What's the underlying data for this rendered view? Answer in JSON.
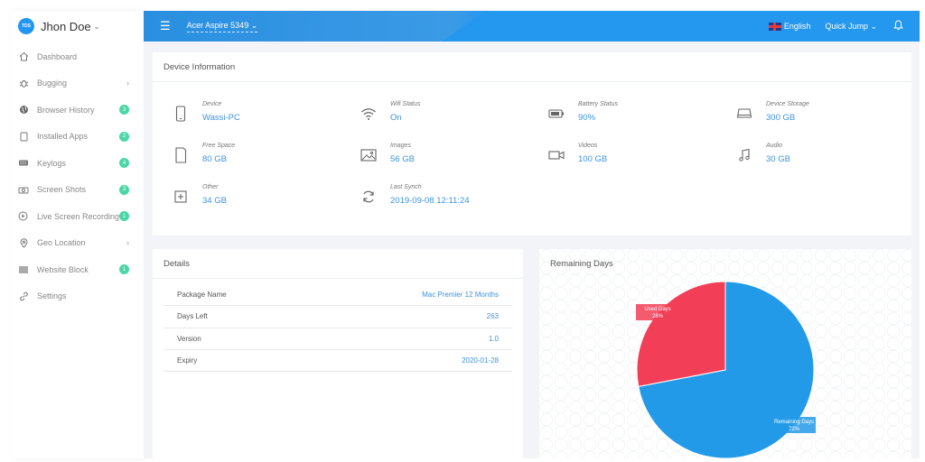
{
  "user": {
    "initials": "TDS",
    "name": "Jhon Doe"
  },
  "sidebar": {
    "items": [
      {
        "label": "Dashboard",
        "icon": "home-icon",
        "badge": null,
        "has_arrow": false
      },
      {
        "label": "Bugging",
        "icon": "bug-icon",
        "badge": null,
        "has_arrow": true
      },
      {
        "label": "Browser History",
        "icon": "globe-icon",
        "badge": "3",
        "has_arrow": false
      },
      {
        "label": "Installed Apps",
        "icon": "tablet-icon",
        "badge": "2",
        "has_arrow": false
      },
      {
        "label": "Keylogs",
        "icon": "keyboard-icon",
        "badge": "4",
        "has_arrow": false
      },
      {
        "label": "Screen Shots",
        "icon": "camera-icon",
        "badge": "3",
        "has_arrow": false
      },
      {
        "label": "Live Screen Recording",
        "icon": "play-circle-icon",
        "badge": "1",
        "has_arrow": false
      },
      {
        "label": "Geo Location",
        "icon": "map-pin-icon",
        "badge": null,
        "has_arrow": true
      },
      {
        "label": "Website Block",
        "icon": "list-icon",
        "badge": "1",
        "has_arrow": false
      },
      {
        "label": "Settings",
        "icon": "link-icon",
        "badge": null,
        "has_arrow": false
      }
    ]
  },
  "topbar": {
    "device": "Acer Aspire 5349",
    "language": "English",
    "quick_jump": "Quick Jump"
  },
  "device_info": {
    "title": "Device Information",
    "items": [
      {
        "label": "Device",
        "value": "Wassi-PC",
        "icon": "phone-icon"
      },
      {
        "label": "Wifi Status",
        "value": "On",
        "icon": "wifi-icon"
      },
      {
        "label": "Battery Status",
        "value": "90%",
        "icon": "battery-icon"
      },
      {
        "label": "Device Storage",
        "value": "300 GB",
        "icon": "storage-icon"
      },
      {
        "label": "Free Space",
        "value": "80 GB",
        "icon": "sdcard-icon"
      },
      {
        "label": "Images",
        "value": "56 GB",
        "icon": "image-icon"
      },
      {
        "label": "Videos",
        "value": "100 GB",
        "icon": "video-icon"
      },
      {
        "label": "Audio",
        "value": "30 GB",
        "icon": "music-icon"
      },
      {
        "label": "Other",
        "value": "34 GB",
        "icon": "plus-square-icon"
      },
      {
        "label": "Last Synch",
        "value": "2019-09-08 12:11:24",
        "icon": "sync-icon"
      }
    ]
  },
  "details": {
    "title": "Details",
    "rows": [
      {
        "key": "Package Name",
        "value": "Mac Premier 12 Months"
      },
      {
        "key": "Days Left",
        "value": "263"
      },
      {
        "key": "Version",
        "value": "1.0"
      },
      {
        "key": "Expiry",
        "value": "2020-01-28"
      }
    ]
  },
  "remaining": {
    "title": "Remaining Days",
    "chart_data": {
      "type": "pie",
      "slices": [
        {
          "name": "Remaining Days",
          "value": 72,
          "label": "72%",
          "color": "#239ae8"
        },
        {
          "name": "Used Days",
          "value": 28,
          "label": "28%",
          "color": "#f23e56"
        }
      ]
    }
  },
  "colors": {
    "accent": "#2196f3",
    "link": "#3d93e0",
    "badge": "#4cd6a5"
  }
}
